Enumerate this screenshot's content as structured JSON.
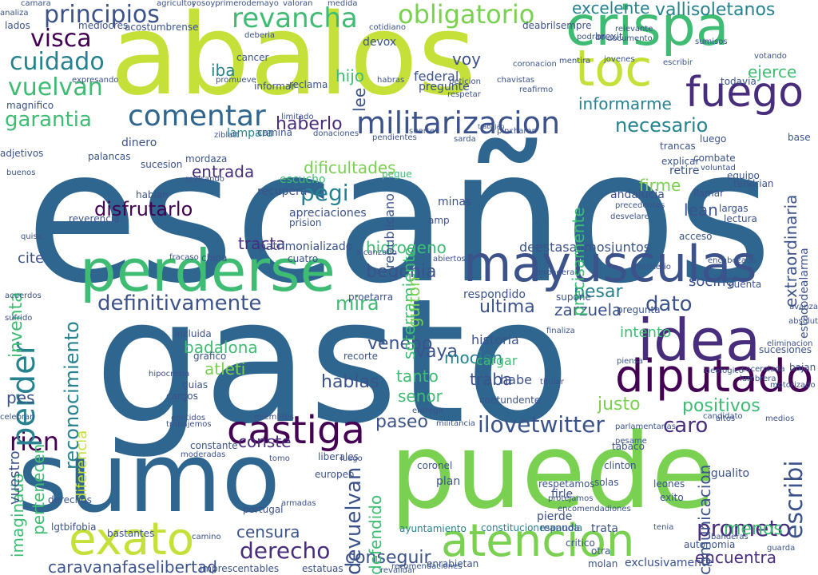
{
  "palette": {
    "dark_blue": "#2f6690",
    "lime": "#c6e03a",
    "green": "#7ad151",
    "mint": "#3fbc73",
    "teal": "#26828e",
    "navy": "#3b528b",
    "purple": "#472d7b",
    "deep_purple": "#440154"
  },
  "words": [
    {
      "text": "escaños",
      "color": "#2f6690"
    },
    {
      "text": "gasto",
      "color": "#2f6690"
    },
    {
      "text": "abalos",
      "color": "#c6e03a"
    },
    {
      "text": "puede",
      "color": "#7ad151"
    },
    {
      "text": "sumo",
      "color": "#2f6690"
    },
    {
      "text": "perderse",
      "color": "#3fbc73"
    },
    {
      "text": "mayusculas",
      "color": "#3b528b"
    },
    {
      "text": "idea",
      "color": "#472d7b"
    },
    {
      "text": "diputado",
      "color": "#440154"
    },
    {
      "text": "crispa",
      "color": "#3fbc73"
    },
    {
      "text": "toc",
      "color": "#c6e03a"
    },
    {
      "text": "fuego",
      "color": "#472d7b"
    },
    {
      "text": "atencion",
      "color": "#7ad151"
    },
    {
      "text": "exato",
      "color": "#c6e03a"
    },
    {
      "text": "castiga",
      "color": "#440154"
    },
    {
      "text": "militarizacion",
      "color": "#3b528b"
    },
    {
      "text": "comentar",
      "color": "#2f6690"
    },
    {
      "text": "revancha",
      "color": "#3fbc73"
    },
    {
      "text": "obligatorio",
      "color": "#7ad151"
    },
    {
      "text": "principios",
      "color": "#3b528b"
    },
    {
      "text": "visca",
      "color": "#440154"
    },
    {
      "text": "cuidado",
      "color": "#26828e"
    },
    {
      "text": "vuelvan",
      "color": "#3fbc73"
    },
    {
      "text": "garantia",
      "color": "#3fbc73"
    },
    {
      "text": "definitivamente",
      "color": "#3b528b"
    },
    {
      "text": "derecho",
      "color": "#472d7b"
    },
    {
      "text": "prometo",
      "color": "#472d7b"
    },
    {
      "text": "ilovetwitter",
      "color": "#3b528b"
    },
    {
      "text": "vallisoletanos",
      "color": "#26828e"
    },
    {
      "text": "excelente",
      "color": "#26828e"
    },
    {
      "text": "necesario",
      "color": "#26828e"
    },
    {
      "text": "informarme",
      "color": "#26828e"
    },
    {
      "text": "haberlo",
      "color": "#472d7b"
    },
    {
      "text": "pegi",
      "color": "#26828e"
    },
    {
      "text": "disfrutarlo",
      "color": "#440154"
    },
    {
      "text": "entrada",
      "color": "#472d7b"
    },
    {
      "text": "dificultades",
      "color": "#7ad151"
    },
    {
      "text": "tracta",
      "color": "#472d7b"
    },
    {
      "text": "hidrogeno",
      "color": "#3fbc73"
    },
    {
      "text": "begonia",
      "color": "#3b528b"
    },
    {
      "text": "mira",
      "color": "#3fbc73"
    },
    {
      "text": "dato",
      "color": "#3b528b"
    },
    {
      "text": "pesar",
      "color": "#26828e"
    },
    {
      "text": "zarzuela",
      "color": "#3b528b"
    },
    {
      "text": "ultima",
      "color": "#3b528b"
    },
    {
      "text": "veneno",
      "color": "#3b528b"
    },
    {
      "text": "vaya",
      "color": "#3b528b"
    },
    {
      "text": "badalona",
      "color": "#3fbc73"
    },
    {
      "text": "mocion",
      "color": "#26828e"
    },
    {
      "text": "traba",
      "color": "#3b528b"
    },
    {
      "text": "hablas",
      "color": "#3b528b"
    },
    {
      "text": "tanto",
      "color": "#3fbc73"
    },
    {
      "text": "senor",
      "color": "#3fbc73"
    },
    {
      "text": "paseo",
      "color": "#3b528b"
    },
    {
      "text": "conste",
      "color": "#472d7b"
    },
    {
      "text": "rien",
      "color": "#440154"
    },
    {
      "text": "caro",
      "color": "#472d7b"
    },
    {
      "text": "positivos",
      "color": "#3fbc73"
    },
    {
      "text": "justo",
      "color": "#7ad151"
    },
    {
      "text": "menos",
      "color": "#3fbc73"
    },
    {
      "text": "censura",
      "color": "#3b528b"
    },
    {
      "text": "conseguir",
      "color": "#3b528b"
    },
    {
      "text": "caravanafaselibertad",
      "color": "#3b528b"
    },
    {
      "text": "encuentra",
      "color": "#472d7b"
    },
    {
      "text": "lean",
      "color": "#3b528b"
    },
    {
      "text": "firme",
      "color": "#7ad151"
    },
    {
      "text": "voy",
      "color": "#3b528b"
    },
    {
      "text": "hijo",
      "color": "#3fbc73"
    },
    {
      "text": "iba",
      "color": "#26828e"
    },
    {
      "text": "ejerce",
      "color": "#3fbc73"
    },
    {
      "text": "socing",
      "color": "#3b528b"
    },
    {
      "text": "intento",
      "color": "#3fbc73"
    },
    {
      "text": "cite",
      "color": "#3b528b"
    },
    {
      "text": "republicano",
      "color": "#3b528b"
    },
    {
      "text": "federal",
      "color": "#3b528b"
    },
    {
      "text": "deestasalimosjuntos",
      "color": "#3b528b"
    },
    {
      "text": "patrimonializado",
      "color": "#3b528b"
    },
    {
      "text": "escucho",
      "color": "#3fbc73"
    },
    {
      "text": "andalucia",
      "color": "#3b528b"
    },
    {
      "text": "apreciaciones",
      "color": "#3b528b"
    },
    {
      "text": "respondido",
      "color": "#3b528b"
    },
    {
      "text": "sucesiones",
      "color": "#3b528b"
    },
    {
      "text": "pegue",
      "color": "#3fbc73"
    },
    {
      "text": "preguntе",
      "color": "#3b528b"
    },
    {
      "text": "reconocimiento",
      "color": "#26828e"
    },
    {
      "text": "perder",
      "color": "#26828e"
    },
    {
      "text": "inventa",
      "color": "#3fbc73"
    },
    {
      "text": "diferencia",
      "color": "#c6e03a"
    },
    {
      "text": "imaginado",
      "color": "#3fbc73"
    },
    {
      "text": "pertenecen",
      "color": "#3fbc73"
    },
    {
      "text": "vuestro",
      "color": "#3b528b"
    },
    {
      "text": "devuelvan",
      "color": "#3b528b"
    },
    {
      "text": "defendido",
      "color": "#3fbc73"
    },
    {
      "text": "escribi",
      "color": "#3b528b"
    },
    {
      "text": "comunicacion",
      "color": "#3b528b"
    },
    {
      "text": "extraordinaria",
      "color": "#3b528b"
    },
    {
      "text": "precisamente",
      "color": "#3fbc73"
    },
    {
      "text": "soterramiento",
      "color": "#3fbc73"
    },
    {
      "text": "estadodealarma",
      "color": "#3b528b"
    },
    {
      "text": "lee",
      "color": "#3b528b"
    },
    {
      "text": "pes",
      "color": "#3b528b"
    },
    {
      "text": "atleti",
      "color": "#7ad151"
    },
    {
      "text": "guiton",
      "color": "#7ad151"
    },
    {
      "text": "devox",
      "color": "#3b528b"
    },
    {
      "text": "brexit",
      "color": "#3b528b"
    },
    {
      "text": "ayuntamiento",
      "color": "#26828e"
    },
    {
      "text": "constitucionespanola",
      "color": "#26828e"
    },
    {
      "text": "trancas",
      "color": "#3b528b"
    },
    {
      "text": "lampara",
      "color": "#26828e"
    },
    {
      "text": "cancer",
      "color": "#3b528b"
    },
    {
      "text": "plan",
      "color": "#3b528b"
    },
    {
      "text": "coronel",
      "color": "#3b528b"
    },
    {
      "text": "clinton",
      "color": "#3b528b"
    },
    {
      "text": "europeo",
      "color": "#3b528b"
    },
    {
      "text": "portugal",
      "color": "#3b528b"
    },
    {
      "text": "estatuas",
      "color": "#3b528b"
    },
    {
      "text": "imprescentables",
      "color": "#3b528b"
    },
    {
      "text": "critico",
      "color": "#3b528b"
    },
    {
      "text": "otra",
      "color": "#3b528b"
    },
    {
      "text": "lgtbifobia",
      "color": "#3b528b"
    },
    {
      "text": "camino",
      "color": "#3b528b"
    },
    {
      "text": "dinero",
      "color": "#3b528b"
    },
    {
      "text": "sucesion",
      "color": "#3b528b"
    },
    {
      "text": "incluida",
      "color": "#3b528b"
    },
    {
      "text": "enrabietan",
      "color": "#3b528b"
    },
    {
      "text": "recomendaciones",
      "color": "#3b528b"
    },
    {
      "text": "exclusivamente",
      "color": "#3b528b"
    },
    {
      "text": "molan",
      "color": "#3b528b"
    },
    {
      "text": "bastantes",
      "color": "#3b528b"
    },
    {
      "text": "derechos",
      "color": "#3b528b"
    },
    {
      "text": "revalidar",
      "color": "#3b528b"
    },
    {
      "text": "abiertos",
      "color": "#3b528b"
    },
    {
      "text": "trata",
      "color": "#3b528b"
    },
    {
      "text": "autonomia",
      "color": "#3b528b"
    },
    {
      "text": "reanuda",
      "color": "#3b528b"
    },
    {
      "text": "tabaco",
      "color": "#3b528b"
    },
    {
      "text": "pierde",
      "color": "#3b528b"
    },
    {
      "text": "firle",
      "color": "#3b528b"
    },
    {
      "text": "historia",
      "color": "#3b528b"
    },
    {
      "text": "cargar",
      "color": "#3fbc73"
    },
    {
      "text": "habe",
      "color": "#3b528b"
    },
    {
      "text": "amp",
      "color": "#3b528b"
    },
    {
      "text": "minas",
      "color": "#3b528b"
    },
    {
      "text": "largas",
      "color": "#3b528b"
    },
    {
      "text": "lectura",
      "color": "#3b528b"
    },
    {
      "text": "acceso",
      "color": "#3b528b"
    },
    {
      "text": "contundente",
      "color": "#3b528b"
    },
    {
      "text": "solas",
      "color": "#3b528b"
    },
    {
      "text": "respetamos",
      "color": "#3b528b"
    },
    {
      "text": "deabrilsempre",
      "color": "#3b528b"
    },
    {
      "text": "todavia",
      "color": "#3b528b"
    },
    {
      "text": "llamar",
      "color": "#3b528b"
    },
    {
      "text": "explicar",
      "color": "#3b528b"
    },
    {
      "text": "retire",
      "color": "#3b528b"
    },
    {
      "text": "voluntad",
      "color": "#3b528b"
    },
    {
      "text": "equipo",
      "color": "#3b528b"
    },
    {
      "text": "combate",
      "color": "#3b528b"
    },
    {
      "text": "igualito",
      "color": "#3b528b"
    },
    {
      "text": "leones",
      "color": "#3b528b"
    },
    {
      "text": "exito",
      "color": "#3b528b"
    },
    {
      "text": "preguntа",
      "color": "#3b528b"
    },
    {
      "text": "piensa",
      "color": "#3b528b"
    },
    {
      "text": "cuenta",
      "color": "#3b528b"
    },
    {
      "text": "luego",
      "color": "#3b528b"
    },
    {
      "text": "mediocres",
      "color": "#3b528b"
    },
    {
      "text": "acostumbrense",
      "color": "#3b528b"
    },
    {
      "text": "magnifico",
      "color": "#3b528b"
    },
    {
      "text": "expresando",
      "color": "#3b528b"
    },
    {
      "text": "adjetivos",
      "color": "#3b528b"
    },
    {
      "text": "buenos",
      "color": "#3b528b"
    },
    {
      "text": "quise",
      "color": "#3b528b"
    },
    {
      "text": "acuerdos",
      "color": "#3b528b"
    },
    {
      "text": "sufrido",
      "color": "#3b528b"
    },
    {
      "text": "celebran",
      "color": "#3b528b"
    },
    {
      "text": "lados",
      "color": "#3b528b"
    },
    {
      "text": "analiza",
      "color": "#3b528b"
    },
    {
      "text": "hablan",
      "color": "#3b528b"
    },
    {
      "text": "reverencia",
      "color": "#3b528b"
    },
    {
      "text": "palancas",
      "color": "#3b528b"
    },
    {
      "text": "mordaza",
      "color": "#3b528b"
    },
    {
      "text": "revisando",
      "color": "#3b528b"
    },
    {
      "text": "ziblatt",
      "color": "#3b528b"
    },
    {
      "text": "camina",
      "color": "#3b528b"
    },
    {
      "text": "prision",
      "color": "#3b528b"
    },
    {
      "text": "recupera",
      "color": "#3b528b"
    },
    {
      "text": "cuatro",
      "color": "#3b528b"
    },
    {
      "text": "china",
      "color": "#3b528b"
    },
    {
      "text": "fracaso",
      "color": "#3b528b"
    },
    {
      "text": "grafico",
      "color": "#3b528b"
    },
    {
      "text": "guias",
      "color": "#3b528b"
    },
    {
      "text": "cargos",
      "color": "#3b528b"
    },
    {
      "text": "recorte",
      "color": "#3b528b"
    },
    {
      "text": "proetarra",
      "color": "#3b528b"
    },
    {
      "text": "verdadera",
      "color": "#3b528b"
    },
    {
      "text": "ministerio",
      "color": "#3b528b"
    },
    {
      "text": "supone",
      "color": "#3b528b"
    },
    {
      "text": "candidato",
      "color": "#3b528b"
    },
    {
      "text": "base",
      "color": "#3b528b"
    },
    {
      "text": "jovenes",
      "color": "#3b528b"
    },
    {
      "text": "escribir",
      "color": "#3b528b"
    },
    {
      "text": "sumisos",
      "color": "#3b528b"
    },
    {
      "text": "documento",
      "color": "#3b528b"
    },
    {
      "text": "relevante",
      "color": "#3b528b"
    },
    {
      "text": "podran",
      "color": "#3b528b"
    },
    {
      "text": "votando",
      "color": "#3b528b"
    },
    {
      "text": "mentira",
      "color": "#3b528b"
    },
    {
      "text": "coronacion",
      "color": "#3b528b"
    },
    {
      "text": "peticion",
      "color": "#3b528b"
    },
    {
      "text": "habras",
      "color": "#3b528b"
    },
    {
      "text": "suerte",
      "color": "#3b528b"
    },
    {
      "text": "sarda",
      "color": "#3b528b"
    },
    {
      "text": "pincharan",
      "color": "#3b528b"
    },
    {
      "text": "trabajan",
      "color": "#3b528b"
    },
    {
      "text": "pendientes",
      "color": "#3b528b"
    },
    {
      "text": "donaciones",
      "color": "#3b528b"
    },
    {
      "text": "limitado",
      "color": "#3b528b"
    },
    {
      "text": "informar",
      "color": "#3b528b"
    },
    {
      "text": "reclama",
      "color": "#3b528b"
    },
    {
      "text": "cotidiano",
      "color": "#3b528b"
    },
    {
      "text": "promueve",
      "color": "#3b528b"
    },
    {
      "text": "deberia",
      "color": "#3b528b"
    },
    {
      "text": "yosoyprimerodemayo",
      "color": "#3b528b"
    },
    {
      "text": "valoran",
      "color": "#3b528b"
    },
    {
      "text": "medida",
      "color": "#3b528b"
    },
    {
      "text": "camara",
      "color": "#3b528b"
    },
    {
      "text": "agricultor",
      "color": "#3b528b"
    },
    {
      "text": "chavistas",
      "color": "#3b528b"
    },
    {
      "text": "reafirmo",
      "color": "#3b528b"
    },
    {
      "text": "respetar",
      "color": "#3b528b"
    },
    {
      "text": "hipocresia",
      "color": "#3b528b"
    },
    {
      "text": "emitidos",
      "color": "#3b528b"
    },
    {
      "text": "trabajemos",
      "color": "#3b528b"
    },
    {
      "text": "constante",
      "color": "#3b528b"
    },
    {
      "text": "moderadas",
      "color": "#3b528b"
    },
    {
      "text": "liberales",
      "color": "#3b528b"
    },
    {
      "text": "luego ",
      "color": "#3b528b"
    },
    {
      "text": "tomo",
      "color": "#3b528b"
    },
    {
      "text": "miembros",
      "color": "#3b528b"
    },
    {
      "text": "armadas",
      "color": "#3b528b"
    },
    {
      "text": "bajan",
      "color": "#3b528b"
    },
    {
      "text": "avanza",
      "color": "#3b528b"
    },
    {
      "text": "absolut",
      "color": "#3b528b"
    },
    {
      "text": "encabezado",
      "color": "#3b528b"
    },
    {
      "text": "precedentes",
      "color": "#3b528b"
    },
    {
      "text": "desvelare",
      "color": "#3b528b"
    },
    {
      "text": "tendrian",
      "color": "#3b528b"
    },
    {
      "text": "cacerolada",
      "color": "#3b528b"
    },
    {
      "text": "motorizado",
      "color": "#3b528b"
    },
    {
      "text": "eliminacion",
      "color": "#3b528b"
    },
    {
      "text": "ideologico",
      "color": "#3b528b"
    },
    {
      "text": "lumbrera",
      "color": "#3b528b"
    },
    {
      "text": "finaliza",
      "color": "#3b528b"
    },
    {
      "text": "titular",
      "color": "#3b528b"
    },
    {
      "text": "alcanzado",
      "color": "#3b528b"
    },
    {
      "text": "tenia",
      "color": "#3b528b"
    },
    {
      "text": "pesame",
      "color": "#3b528b"
    },
    {
      "text": "banderas",
      "color": "#3b528b"
    },
    {
      "text": "guarda",
      "color": "#3b528b"
    },
    {
      "text": "parlamentarias",
      "color": "#3b528b"
    },
    {
      "text": "medios",
      "color": "#3b528b"
    },
    {
      "text": "protejamos",
      "color": "#3b528b"
    },
    {
      "text": "encomendadiones",
      "color": "#3b528b"
    },
    {
      "text": "entrega",
      "color": "#3b528b"
    },
    {
      "text": "altos",
      "color": "#3b528b"
    },
    {
      "text": "militancia",
      "color": "#3b528b"
    }
  ]
}
